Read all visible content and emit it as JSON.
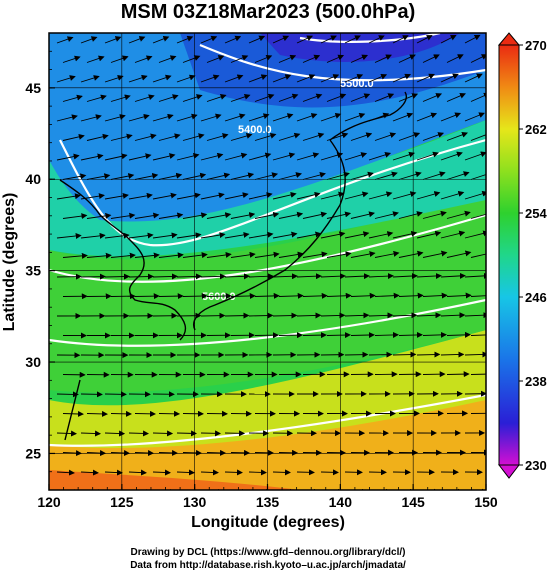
{
  "title": "MSM 03Z18Mar2023 (500.0hPa)",
  "x_axis": {
    "label": "Longitude (degrees)",
    "range": [
      120,
      150
    ],
    "ticks": [
      "120",
      "125",
      "130",
      "135",
      "140",
      "145",
      "150"
    ]
  },
  "y_axis": {
    "label": "Latitude  (degrees)",
    "range": [
      23,
      48
    ],
    "ticks": [
      "25",
      "30",
      "35",
      "40",
      "45"
    ]
  },
  "colorbar": {
    "range": [
      230,
      270
    ],
    "ticks": [
      "270",
      "262",
      "254",
      "246",
      "238",
      "230"
    ],
    "stops": [
      {
        "value": 230,
        "color": "#d30fd3"
      },
      {
        "value": 234,
        "color": "#2a1fd6"
      },
      {
        "value": 240,
        "color": "#1a74e8"
      },
      {
        "value": 246,
        "color": "#17c6e6"
      },
      {
        "value": 250,
        "color": "#20d68a"
      },
      {
        "value": 254,
        "color": "#2ed12e"
      },
      {
        "value": 258,
        "color": "#8ee01e"
      },
      {
        "value": 262,
        "color": "#e6e61a"
      },
      {
        "value": 266,
        "color": "#f08a14"
      },
      {
        "value": 270,
        "color": "#ea2b12"
      }
    ]
  },
  "contour_labels": [
    "5500.0",
    "5400.0",
    "5600.0"
  ],
  "credits": {
    "line1": "Drawing by DCL (https://www.gfd–dennou.org/library/dcl/)",
    "line2": "Data from http://database.rish.kyoto–u.ac.jp/arch/jmadata/"
  }
}
